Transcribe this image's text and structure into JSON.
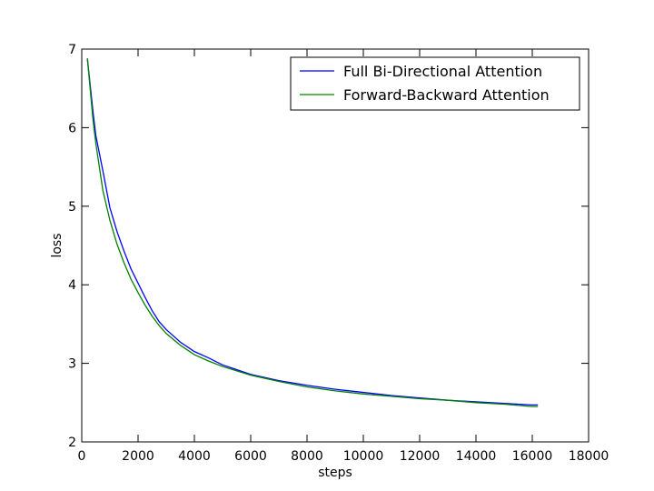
{
  "chart_data": {
    "type": "line",
    "title": "",
    "xlabel": "steps",
    "ylabel": "loss",
    "xlim": [
      0,
      18000
    ],
    "ylim": [
      2,
      7
    ],
    "xticks": [
      0,
      2000,
      4000,
      6000,
      8000,
      10000,
      12000,
      14000,
      16000,
      18000
    ],
    "yticks": [
      2,
      3,
      4,
      5,
      6,
      7
    ],
    "grid": false,
    "legend_position": "top-right",
    "series": [
      {
        "name": "Full Bi-Directional Attention",
        "color": "#0000ff",
        "x": [
          200,
          400,
          500,
          750,
          1000,
          1250,
          1500,
          1750,
          2000,
          2250,
          2500,
          2750,
          3000,
          3500,
          4000,
          4500,
          5000,
          6000,
          7000,
          8000,
          9000,
          10000,
          11000,
          12000,
          13000,
          14000,
          15000,
          16000,
          16200
        ],
        "y": [
          6.88,
          6.2,
          5.9,
          5.45,
          4.98,
          4.68,
          4.43,
          4.2,
          4.02,
          3.84,
          3.67,
          3.53,
          3.43,
          3.27,
          3.15,
          3.07,
          2.98,
          2.86,
          2.78,
          2.72,
          2.67,
          2.63,
          2.59,
          2.56,
          2.53,
          2.51,
          2.49,
          2.47,
          2.47
        ]
      },
      {
        "name": "Forward-Backward Attention",
        "color": "#008000",
        "x": [
          200,
          400,
          500,
          750,
          1000,
          1250,
          1500,
          1750,
          2000,
          2250,
          2500,
          2750,
          3000,
          3500,
          4000,
          4500,
          5000,
          6000,
          7000,
          8000,
          9000,
          10000,
          11000,
          12000,
          13000,
          14000,
          15000,
          16000,
          16200
        ],
        "y": [
          6.88,
          6.1,
          5.8,
          5.2,
          4.82,
          4.52,
          4.28,
          4.07,
          3.9,
          3.74,
          3.6,
          3.48,
          3.38,
          3.23,
          3.11,
          3.03,
          2.96,
          2.85,
          2.77,
          2.7,
          2.65,
          2.61,
          2.58,
          2.55,
          2.53,
          2.5,
          2.48,
          2.45,
          2.45
        ]
      }
    ]
  }
}
